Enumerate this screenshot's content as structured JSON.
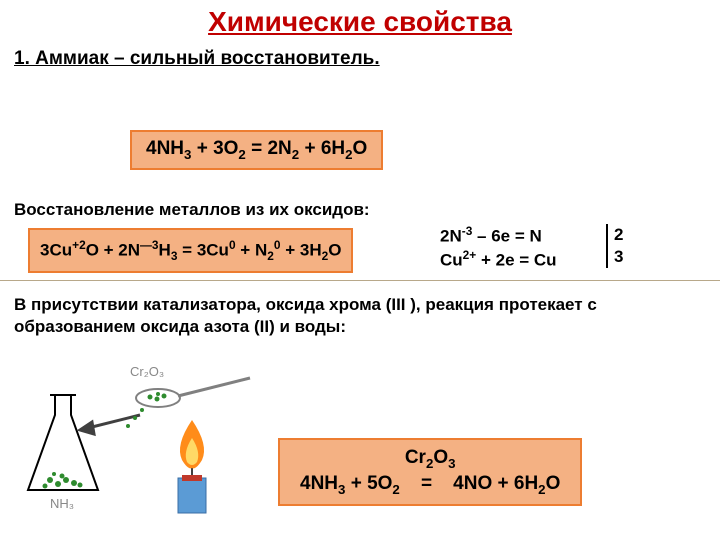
{
  "colors": {
    "title": "#c00000",
    "text": "#000000",
    "box_bg": "#f4b183",
    "box_border": "#ed7d31",
    "divider": "#b8a88a",
    "flask_outline": "#000000",
    "flask_green": "#2e8b2e",
    "spoon_gray": "#808080",
    "flame_orange": "#ff8c1a",
    "flame_yellow": "#ffd966",
    "candle_blue": "#5b9bd5",
    "candle_red": "#c0392b",
    "arrow": "#404040",
    "label_gray": "#888888"
  },
  "title": "Химические свойства",
  "subtitle": "1. Аммиак – сильный восстановитель.",
  "equation1_html": "4NH<sub>3</sub> + 3O<sub>2</sub> = 2N<sub>2</sub> + 6H<sub>2</sub>O",
  "section1": "Восстановление металлов из их оксидов:",
  "equation2_html": "3Cu<sup>+2</sup>O + 2N<sup>—3</sup>H<sub>3</sub> = 3Cu<sup>0</sup> + N<sub>2</sub><sup>0</sup> + 3H<sub>2</sub>O",
  "half1_html": "2N<sup>-3</sup> – 6e  =  N",
  "half2_html": "Cu<sup>2+</sup> + 2e = Cu",
  "coef1": "2",
  "coef2": "3",
  "section2": "В присутствии катализатора, оксида хрома (III ), реакция протекает с образованием оксида азота (II) и воды:",
  "equation3_top_html": "Cr<sub>2</sub>O<sub>3</sub>",
  "equation3_bottom_html": "4NH<sub>3</sub> + 5O<sub>2</sub>&nbsp;&nbsp;&nbsp;&nbsp;=&nbsp;&nbsp;&nbsp;&nbsp;4NO + 6H<sub>2</sub>O",
  "diagram": {
    "flask_label": "NH₃",
    "powder_label": "Cr₂O₃"
  }
}
